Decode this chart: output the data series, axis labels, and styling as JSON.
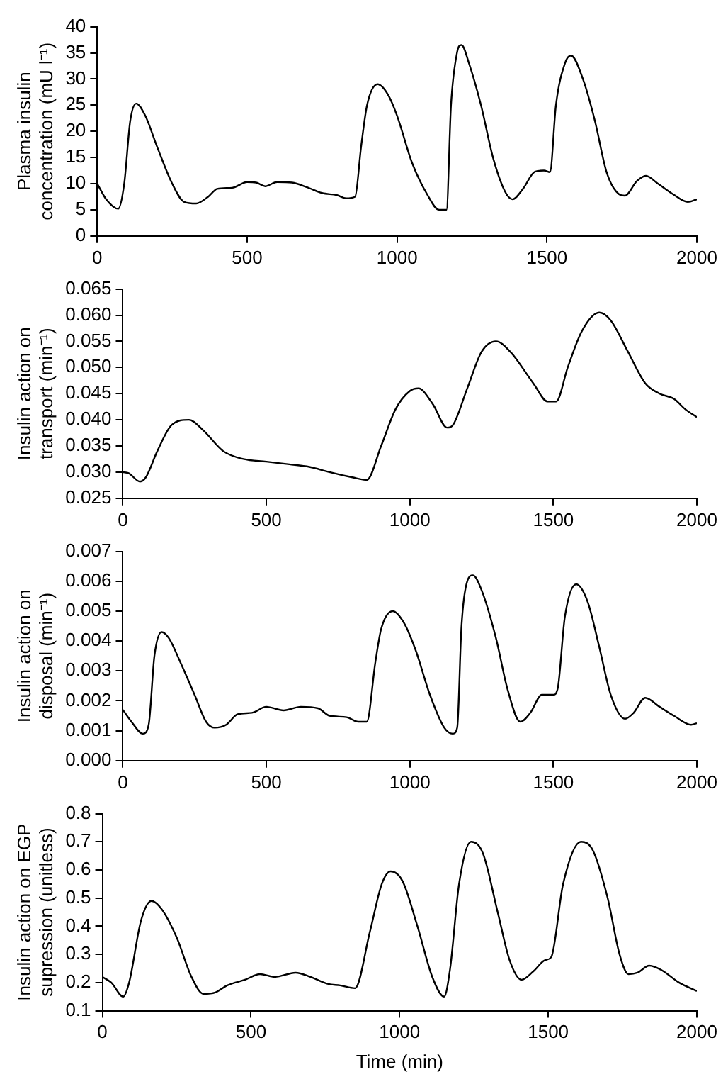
{
  "chart_data": [
    {
      "type": "line",
      "ylabel": "Plasma insulin concentration (mU l⁻¹)",
      "color": "#000000",
      "grid": false,
      "x": [
        0,
        30,
        70,
        90,
        110,
        130,
        160,
        200,
        250,
        290,
        330,
        370,
        400,
        450,
        500,
        530,
        560,
        600,
        650,
        700,
        750,
        800,
        830,
        860,
        880,
        900,
        935,
        970,
        1000,
        1050,
        1100,
        1140,
        1165,
        1180,
        1200,
        1215,
        1240,
        1280,
        1320,
        1360,
        1385,
        1420,
        1460,
        1490,
        1510,
        1530,
        1560,
        1580,
        1620,
        1660,
        1700,
        1740,
        1760,
        1800,
        1830,
        1870,
        1920,
        1970,
        2000
      ],
      "values": [
        10,
        7,
        5.2,
        10,
        22,
        25.3,
        23,
        17,
        10,
        6.5,
        6.2,
        7.5,
        9,
        9.2,
        10.3,
        10.2,
        9.5,
        10.3,
        10.2,
        9.3,
        8.2,
        7.8,
        7.2,
        7.5,
        17,
        25,
        29,
        27,
        23,
        14,
        8,
        5,
        5,
        25,
        35,
        36.5,
        33,
        25,
        15,
        8.5,
        7,
        9,
        12.3,
        12.5,
        12.2,
        25,
        33,
        34.5,
        30,
        22,
        12,
        8,
        7.7,
        10.5,
        11.5,
        10,
        8,
        6.5,
        7
      ],
      "xlim": [
        0,
        2000
      ],
      "xticks": [
        0,
        500,
        1000,
        1500,
        2000
      ],
      "ylim": [
        0,
        40
      ],
      "yticks": [
        0,
        5,
        10,
        15,
        20,
        25,
        30,
        35,
        40
      ]
    },
    {
      "type": "line",
      "ylabel": "Insulin action on transport (min⁻¹)",
      "color": "#000000",
      "grid": false,
      "x": [
        0,
        20,
        60,
        80,
        120,
        170,
        230,
        280,
        350,
        420,
        500,
        580,
        650,
        720,
        800,
        850,
        900,
        950,
        1000,
        1030,
        1080,
        1130,
        1150,
        1200,
        1250,
        1300,
        1350,
        1430,
        1480,
        1510,
        1550,
        1600,
        1660,
        1700,
        1760,
        1820,
        1870,
        1920,
        1960,
        2000
      ],
      "values": [
        0.03,
        0.0298,
        0.0282,
        0.029,
        0.034,
        0.039,
        0.04,
        0.038,
        0.034,
        0.0325,
        0.032,
        0.0315,
        0.031,
        0.03,
        0.029,
        0.0285,
        0.035,
        0.042,
        0.0455,
        0.046,
        0.043,
        0.0385,
        0.039,
        0.046,
        0.053,
        0.055,
        0.053,
        0.047,
        0.0435,
        0.0435,
        0.05,
        0.057,
        0.0605,
        0.059,
        0.053,
        0.047,
        0.045,
        0.044,
        0.042,
        0.0405
      ],
      "xlim": [
        0,
        2000
      ],
      "xticks": [
        0,
        500,
        1000,
        1500,
        2000
      ],
      "ylim": [
        0.025,
        0.065
      ],
      "yticks": [
        0.025,
        {
          "value": 0.03,
          "label": "0.030"
        },
        0.035,
        {
          "value": 0.04,
          "label": "0.040"
        },
        0.045,
        {
          "value": 0.05,
          "label": "0.050"
        },
        0.055,
        {
          "value": 0.06,
          "label": "0.060"
        },
        0.065
      ]
    },
    {
      "type": "line",
      "ylabel": "Insulin action on disposal (min⁻¹)",
      "color": "#000000",
      "grid": false,
      "x": [
        0,
        30,
        70,
        90,
        110,
        135,
        160,
        200,
        250,
        290,
        320,
        360,
        400,
        450,
        500,
        560,
        620,
        680,
        720,
        780,
        820,
        850,
        880,
        900,
        940,
        980,
        1020,
        1070,
        1120,
        1150,
        1165,
        1180,
        1200,
        1220,
        1250,
        1300,
        1340,
        1385,
        1420,
        1460,
        1500,
        1515,
        1540,
        1580,
        1620,
        1660,
        1700,
        1750,
        1780,
        1820,
        1870,
        1920,
        1980,
        2000
      ],
      "values": [
        0.0017,
        0.0013,
        0.0009,
        0.0012,
        0.0035,
        0.0043,
        0.0041,
        0.0033,
        0.0022,
        0.0013,
        0.0011,
        0.0012,
        0.00155,
        0.0016,
        0.0018,
        0.00168,
        0.0018,
        0.00175,
        0.0015,
        0.00145,
        0.0013,
        0.0013,
        0.0033,
        0.0044,
        0.005,
        0.0046,
        0.0037,
        0.0022,
        0.0011,
        0.0009,
        0.0011,
        0.0045,
        0.006,
        0.0062,
        0.0057,
        0.0041,
        0.0024,
        0.0013,
        0.0016,
        0.0022,
        0.0022,
        0.0024,
        0.0048,
        0.0059,
        0.0053,
        0.0038,
        0.0022,
        0.0014,
        0.0016,
        0.0021,
        0.0018,
        0.0015,
        0.0012,
        0.00125
      ],
      "xlim": [
        0,
        2000
      ],
      "xticks": [
        0,
        500,
        1000,
        1500,
        2000
      ],
      "ylim": [
        0,
        0.007
      ],
      "yticks": [
        {
          "value": 0,
          "label": "0.000"
        },
        0.001,
        0.002,
        0.003,
        0.004,
        0.005,
        0.006,
        0.007
      ]
    },
    {
      "type": "line",
      "xlabel": "Time (min)",
      "ylabel": "Insulin action on EGP supression (unitless)",
      "color": "#000000",
      "grid": false,
      "x": [
        0,
        30,
        70,
        90,
        130,
        165,
        200,
        250,
        300,
        340,
        380,
        420,
        480,
        530,
        580,
        650,
        700,
        760,
        800,
        850,
        900,
        940,
        970,
        1010,
        1060,
        1110,
        1150,
        1170,
        1200,
        1240,
        1280,
        1330,
        1370,
        1410,
        1450,
        1490,
        1510,
        1550,
        1610,
        1650,
        1700,
        1740,
        1770,
        1800,
        1840,
        1880,
        1940,
        2000
      ],
      "values": [
        0.22,
        0.2,
        0.15,
        0.2,
        0.42,
        0.49,
        0.46,
        0.36,
        0.22,
        0.16,
        0.165,
        0.19,
        0.21,
        0.23,
        0.22,
        0.235,
        0.22,
        0.195,
        0.19,
        0.18,
        0.38,
        0.55,
        0.595,
        0.56,
        0.4,
        0.22,
        0.15,
        0.25,
        0.55,
        0.7,
        0.66,
        0.45,
        0.28,
        0.21,
        0.24,
        0.28,
        0.29,
        0.55,
        0.7,
        0.67,
        0.5,
        0.3,
        0.23,
        0.235,
        0.26,
        0.245,
        0.2,
        0.17
      ],
      "xlim": [
        0,
        2000
      ],
      "xticks": [
        0,
        500,
        1000,
        1500,
        2000
      ],
      "ylim": [
        0.1,
        0.8
      ],
      "yticks": [
        0.1,
        0.2,
        0.3,
        0.4,
        0.5,
        0.6,
        0.7,
        0.8
      ]
    }
  ]
}
